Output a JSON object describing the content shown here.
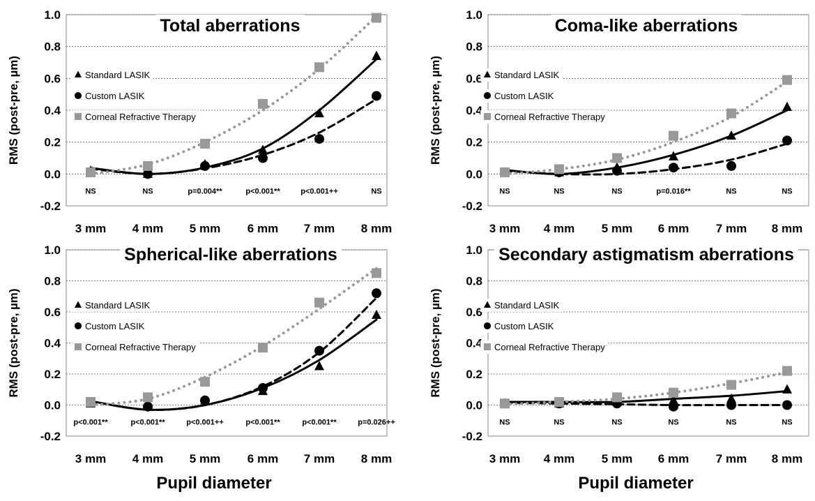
{
  "figure": {
    "xaxis_title": "Pupil diameter",
    "colors": {
      "standard": "#000000",
      "custom": "#000000",
      "crt": "#999999"
    }
  },
  "chart_data": [
    {
      "type": "scatter",
      "title": "Total aberrations",
      "ylabel": "RMS (post-pre, µm)",
      "ylim": [
        -0.2,
        1.0
      ],
      "yticks": [
        "-0.2",
        "0.0",
        "0.2",
        "0.4",
        "0.6",
        "0.8",
        "1.0"
      ],
      "categories": [
        "3 mm",
        "4 mm",
        "5 mm",
        "6 mm",
        "7 mm",
        "8 mm"
      ],
      "x": [
        3,
        4,
        5,
        6,
        7,
        8
      ],
      "series": [
        {
          "name": "Standard LASIK",
          "marker": "triangle",
          "line": "solid",
          "values": [
            0.02,
            0.0,
            0.06,
            0.15,
            0.38,
            0.74
          ],
          "fit": [
            0.038,
            0.0,
            0.04,
            0.16,
            0.4,
            0.72
          ]
        },
        {
          "name": "Custom LASIK",
          "marker": "circle",
          "line": "dashed",
          "values": [
            0.01,
            0.0,
            0.05,
            0.1,
            0.22,
            0.49
          ],
          "fit": [
            0.033,
            0.0,
            0.035,
            0.12,
            0.26,
            0.47
          ]
        },
        {
          "name": "Corneal Refractive Therapy",
          "marker": "square",
          "line": "dotted",
          "values": [
            0.01,
            0.05,
            0.19,
            0.44,
            0.67,
            0.98
          ],
          "fit": [
            0.0,
            0.06,
            0.2,
            0.4,
            0.66,
            0.99
          ]
        }
      ],
      "annotations": [
        "NS",
        "NS",
        "p=0.004**",
        "p<0.001**",
        "p<0.001++",
        "NS"
      ]
    },
    {
      "type": "scatter",
      "title": "Coma-like aberrations",
      "ylabel": "RMS (post-pre, µm)",
      "ylim": [
        -0.2,
        1.0
      ],
      "yticks": [
        "-0.2",
        "0.0",
        "0.2",
        "0.4",
        "0.6",
        "0.8",
        "1.0"
      ],
      "categories": [
        "3 mm",
        "4 mm",
        "5 mm",
        "6 mm",
        "7 mm",
        "8 mm"
      ],
      "x": [
        3,
        4,
        5,
        6,
        7,
        8
      ],
      "series": [
        {
          "name": "Standard LASIK",
          "marker": "triangle",
          "line": "solid",
          "values": [
            0.01,
            0.01,
            0.04,
            0.11,
            0.24,
            0.42
          ],
          "fit": [
            0.025,
            0.0,
            0.04,
            0.12,
            0.24,
            0.4
          ]
        },
        {
          "name": "Custom LASIK",
          "marker": "circle",
          "line": "dashed",
          "values": [
            0.01,
            0.01,
            0.02,
            0.04,
            0.05,
            0.21
          ],
          "fit": [
            0.02,
            0.0,
            0.0,
            0.03,
            0.09,
            0.19
          ]
        },
        {
          "name": "Corneal Refractive Therapy",
          "marker": "square",
          "line": "dotted",
          "values": [
            0.01,
            0.03,
            0.1,
            0.24,
            0.38,
            0.59
          ],
          "fit": [
            0.0,
            0.03,
            0.09,
            0.2,
            0.36,
            0.58
          ]
        }
      ],
      "annotations": [
        "NS",
        "NS",
        "NS",
        "p=0.016**",
        "NS",
        "NS"
      ]
    },
    {
      "type": "scatter",
      "title": "Spherical-like aberrations",
      "ylabel": "RMS (post-pre, µm)",
      "ylim": [
        -0.2,
        1.0
      ],
      "yticks": [
        "-0.2",
        "0.0",
        "0.2",
        "0.4",
        "0.6",
        "0.8",
        "1.0"
      ],
      "categories": [
        "3 mm",
        "4 mm",
        "5 mm",
        "6 mm",
        "7 mm",
        "8 mm"
      ],
      "x": [
        3,
        4,
        5,
        6,
        7,
        8
      ],
      "series": [
        {
          "name": "Standard LASIK",
          "marker": "triangle",
          "line": "solid",
          "values": [
            0.01,
            -0.01,
            0.03,
            0.09,
            0.25,
            0.58
          ],
          "fit": [
            0.025,
            -0.03,
            0.0,
            0.11,
            0.29,
            0.55
          ]
        },
        {
          "name": "Custom LASIK",
          "marker": "circle",
          "line": "dashed",
          "values": [
            0.02,
            -0.01,
            0.03,
            0.11,
            0.35,
            0.72
          ],
          "fit": [
            0.025,
            -0.03,
            0.0,
            0.12,
            0.34,
            0.69
          ]
        },
        {
          "name": "Corneal Refractive Therapy",
          "marker": "square",
          "line": "dotted",
          "values": [
            0.02,
            0.05,
            0.15,
            0.37,
            0.66,
            0.85
          ],
          "fit": [
            0.0,
            0.04,
            0.18,
            0.38,
            0.62,
            0.88
          ]
        }
      ],
      "annotations": [
        "p<0.001**",
        "p<0.001**",
        "p<0.001++",
        "p<0.001**",
        "p<0.001**",
        "p=0.026++"
      ]
    },
    {
      "type": "scatter",
      "title": "Secondary astigmatism aberrations",
      "ylabel": "RMS (post-pre, µm)",
      "ylim": [
        -0.2,
        1.0
      ],
      "yticks": [
        "-0.2",
        "0.0",
        "0.2",
        "0.4",
        "0.6",
        "0.8",
        "1.0"
      ],
      "categories": [
        "3 mm",
        "4 mm",
        "5 mm",
        "6 mm",
        "7 mm",
        "8 mm"
      ],
      "x": [
        3,
        4,
        5,
        6,
        7,
        8
      ],
      "series": [
        {
          "name": "Standard LASIK",
          "marker": "triangle",
          "line": "solid",
          "values": [
            0.01,
            0.01,
            0.02,
            0.03,
            0.04,
            0.1
          ],
          "fit": [
            0.02,
            0.02,
            0.02,
            0.04,
            0.06,
            0.09
          ]
        },
        {
          "name": "Custom LASIK",
          "marker": "circle",
          "line": "dashed",
          "values": [
            0.01,
            0.01,
            0.01,
            -0.01,
            0.0,
            0.0
          ],
          "fit": [
            0.015,
            0.01,
            0.005,
            0.0,
            0.0,
            0.0
          ]
        },
        {
          "name": "Corneal Refractive Therapy",
          "marker": "square",
          "line": "dotted",
          "values": [
            0.01,
            0.02,
            0.05,
            0.08,
            0.13,
            0.22
          ],
          "fit": [
            0.005,
            0.02,
            0.04,
            0.08,
            0.14,
            0.21
          ]
        }
      ],
      "annotations": [
        "NS",
        "NS",
        "NS",
        "NS",
        "NS",
        "NS"
      ]
    }
  ]
}
